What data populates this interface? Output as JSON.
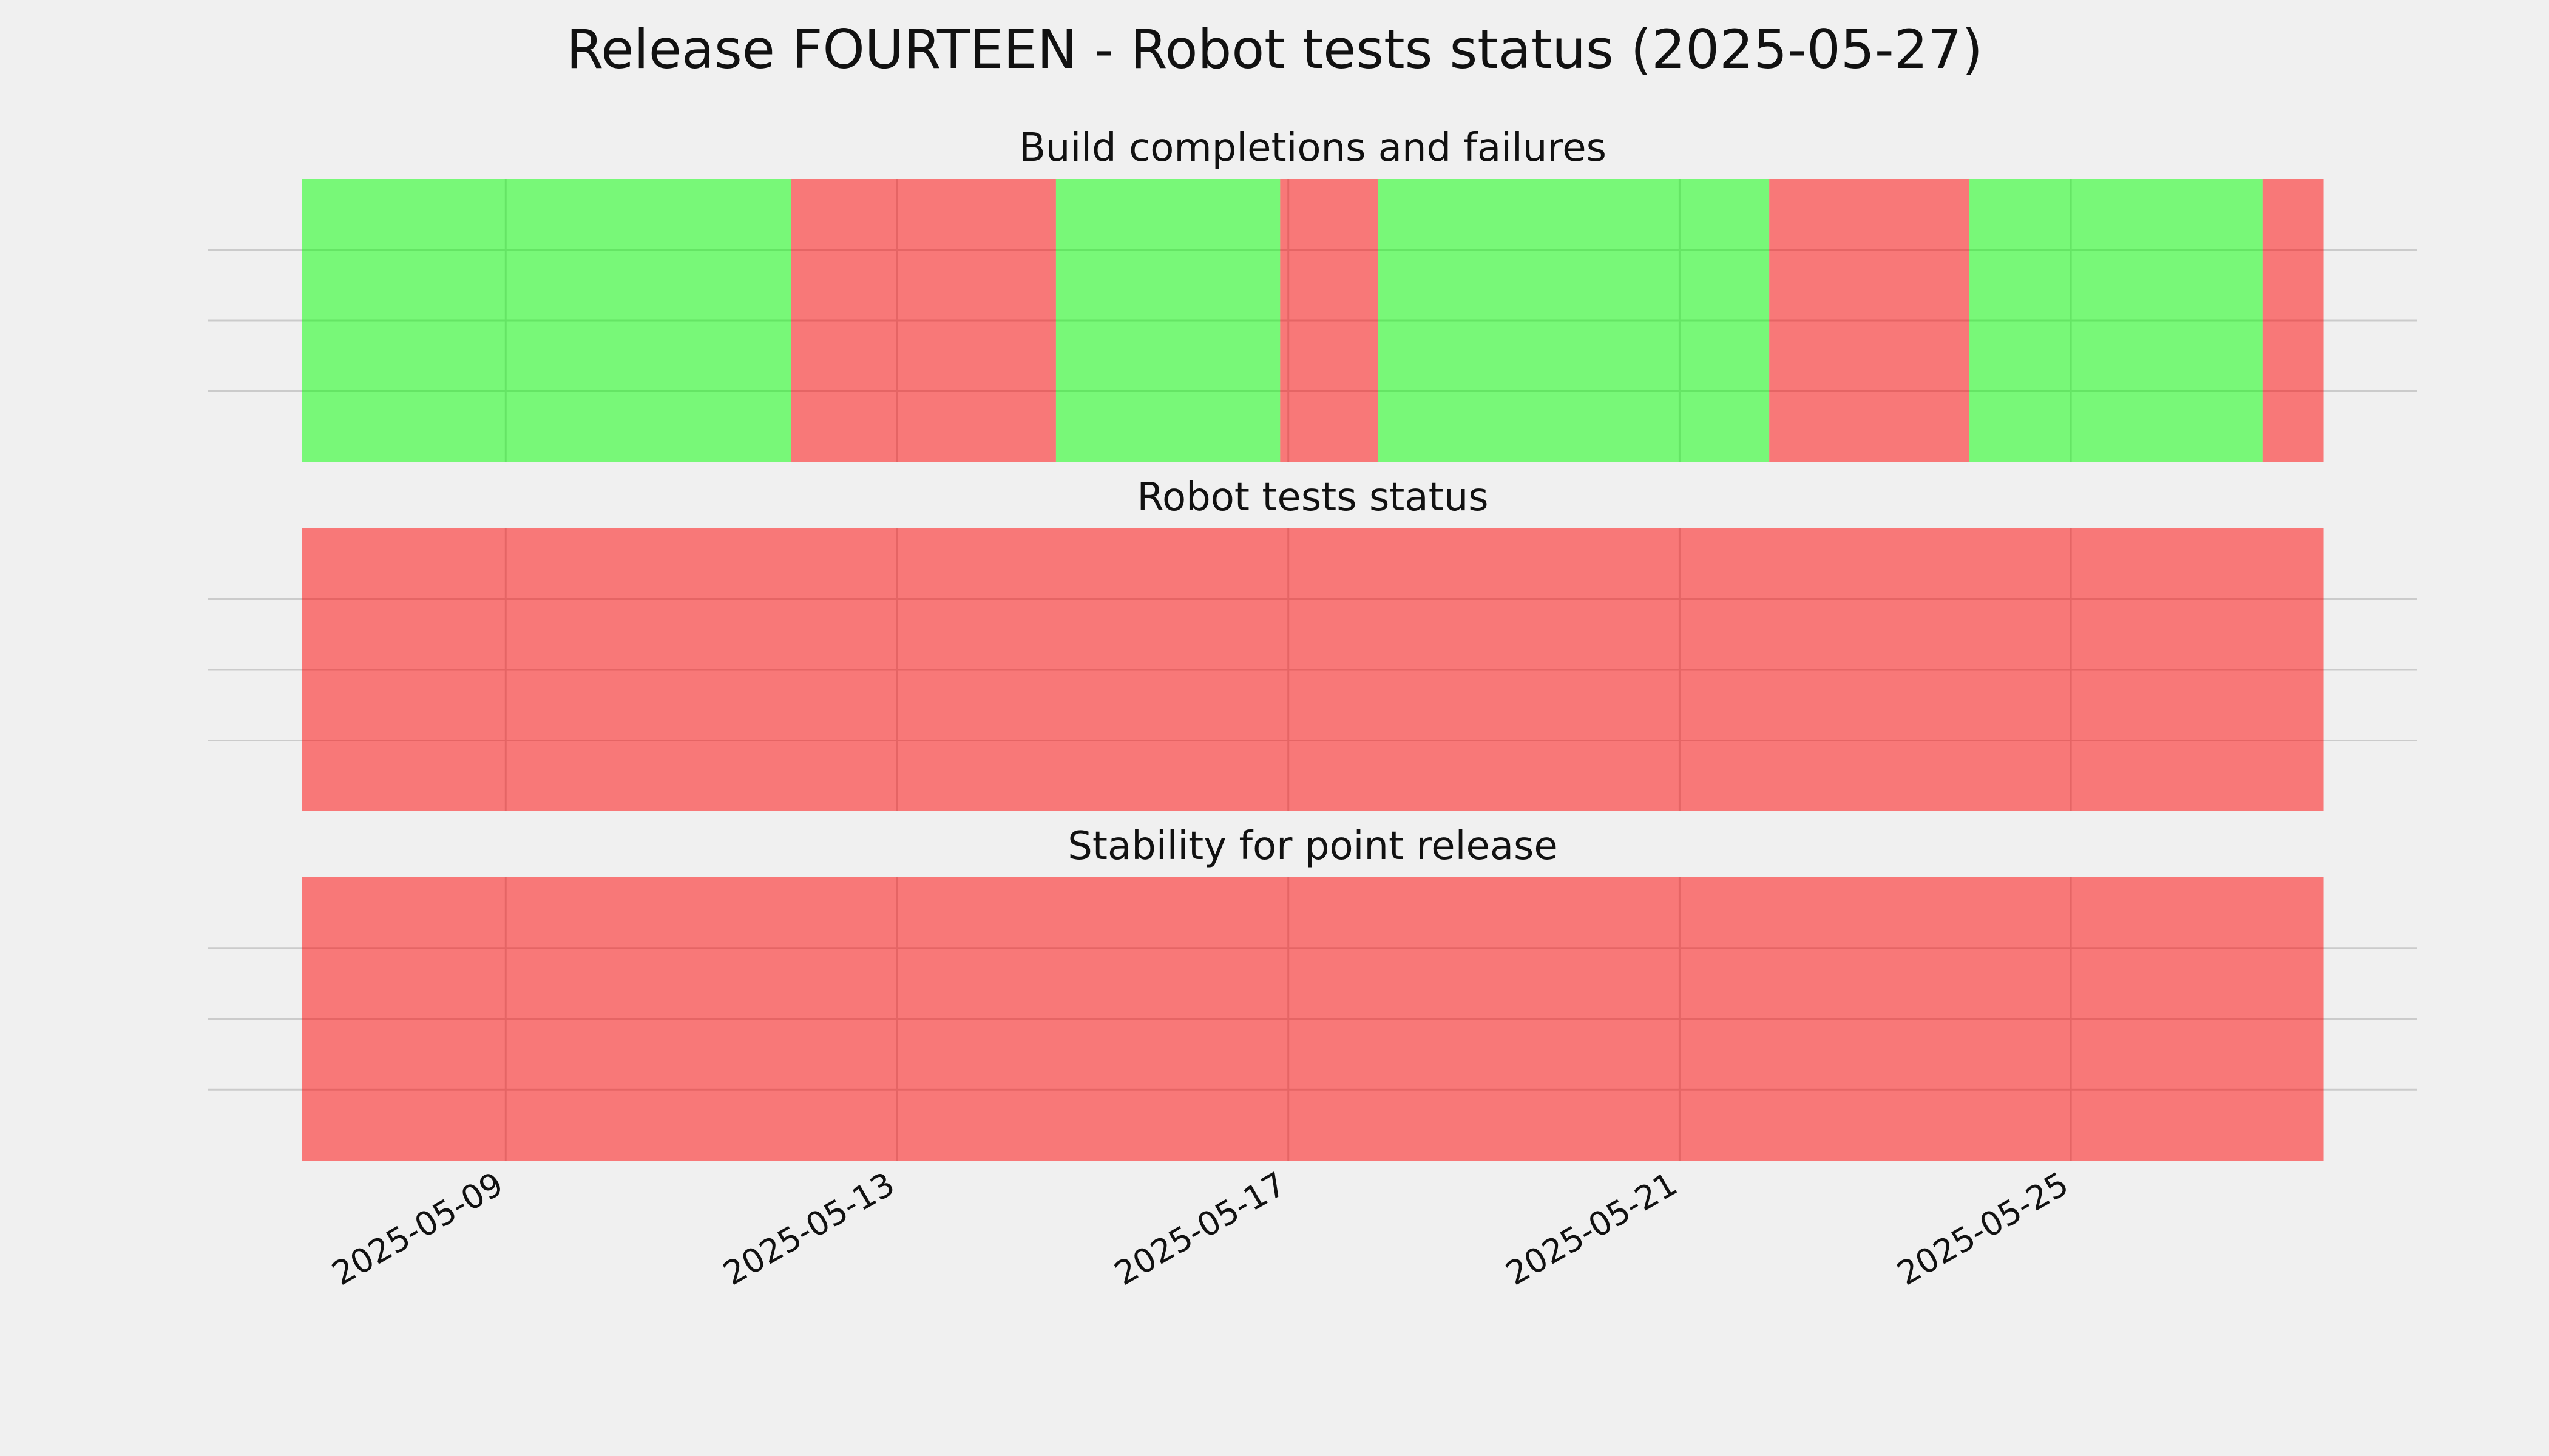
{
  "title": "Release FOURTEEN - Robot tests status (2025-05-27)",
  "chart_data": [
    {
      "type": "span",
      "title": "Build completions and failures",
      "alpha": 0.5,
      "spans": [
        {
          "start": "2025-05-06T22:00",
          "end": "2025-05-11T22:00",
          "color": "#00ff00"
        },
        {
          "start": "2025-05-11T22:00",
          "end": "2025-05-14T15:00",
          "color": "#ff0000"
        },
        {
          "start": "2025-05-14T15:00",
          "end": "2025-05-16T22:00",
          "color": "#00ff00"
        },
        {
          "start": "2025-05-16T22:00",
          "end": "2025-05-17T22:00",
          "color": "#ff0000"
        },
        {
          "start": "2025-05-17T22:00",
          "end": "2025-05-21T22:00",
          "color": "#00ff00"
        },
        {
          "start": "2025-05-21T22:00",
          "end": "2025-05-23T23:00",
          "color": "#ff0000"
        },
        {
          "start": "2025-05-23T23:00",
          "end": "2025-05-26T23:00",
          "color": "#00ff00"
        },
        {
          "start": "2025-05-26T23:00",
          "end": "2025-05-27T14:00",
          "color": "#ff0000"
        }
      ],
      "xlim": [
        "2025-05-05T23:00",
        "2025-05-28T13:00"
      ],
      "xticks": [
        "2025-05-09",
        "2025-05-13",
        "2025-05-17",
        "2025-05-21",
        "2025-05-25"
      ],
      "ylim": [
        0,
        1
      ],
      "yticks": [
        0.25,
        0.5,
        0.75
      ],
      "show_xtick_labels": false,
      "show_ytick_labels": false,
      "grid": true
    },
    {
      "type": "span",
      "title": "Robot tests status",
      "alpha": 0.5,
      "spans": [
        {
          "start": "2025-05-06T22:00",
          "end": "2025-05-27T14:00",
          "color": "#ff0000"
        }
      ],
      "xlim": [
        "2025-05-05T23:00",
        "2025-05-28T13:00"
      ],
      "xticks": [
        "2025-05-09",
        "2025-05-13",
        "2025-05-17",
        "2025-05-21",
        "2025-05-25"
      ],
      "ylim": [
        0,
        1
      ],
      "yticks": [
        0.25,
        0.5,
        0.75
      ],
      "show_xtick_labels": false,
      "show_ytick_labels": false,
      "grid": true
    },
    {
      "type": "span",
      "title": "Stability for point release",
      "alpha": 0.5,
      "spans": [
        {
          "start": "2025-05-06T22:00",
          "end": "2025-05-27T14:00",
          "color": "#ff0000"
        }
      ],
      "xlim": [
        "2025-05-05T23:00",
        "2025-05-28T13:00"
      ],
      "xticks": [
        "2025-05-09",
        "2025-05-13",
        "2025-05-17",
        "2025-05-21",
        "2025-05-25"
      ],
      "ylim": [
        0,
        1
      ],
      "yticks": [
        0.25,
        0.5,
        0.75
      ],
      "show_xtick_labels": true,
      "show_ytick_labels": false,
      "grid": true
    }
  ]
}
